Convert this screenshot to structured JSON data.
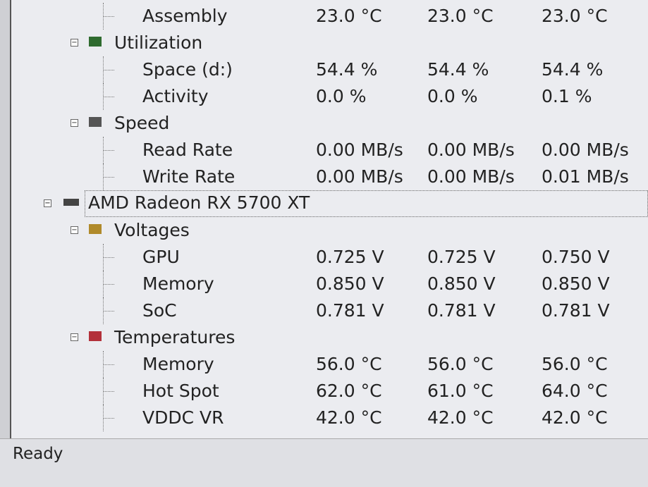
{
  "disk": {
    "sensor_tail": {
      "label": "Assembly",
      "values": [
        "23.0 °C",
        "23.0 °C",
        "23.0 °C"
      ]
    },
    "groups": [
      {
        "label": "Utilization",
        "sensors": [
          {
            "label": "Space (d:)",
            "values": [
              "54.4 %",
              "54.4 %",
              "54.4 %"
            ]
          },
          {
            "label": "Activity",
            "values": [
              "0.0 %",
              "0.0 %",
              "0.1 %"
            ]
          }
        ]
      },
      {
        "label": "Speed",
        "sensors": [
          {
            "label": "Read Rate",
            "values": [
              "0.00 MB/s",
              "0.00 MB/s",
              "0.00 MB/s"
            ]
          },
          {
            "label": "Write Rate",
            "values": [
              "0.00 MB/s",
              "0.00 MB/s",
              "0.01 MB/s"
            ]
          }
        ]
      }
    ]
  },
  "device": {
    "label": "AMD Radeon RX 5700 XT",
    "groups": [
      {
        "label": "Voltages",
        "sensors": [
          {
            "label": "GPU",
            "values": [
              "0.725 V",
              "0.725 V",
              "0.750 V"
            ]
          },
          {
            "label": "Memory",
            "values": [
              "0.850 V",
              "0.850 V",
              "0.850 V"
            ]
          },
          {
            "label": "SoC",
            "values": [
              "0.781 V",
              "0.781 V",
              "0.781 V"
            ]
          }
        ]
      },
      {
        "label": "Temperatures",
        "sensors": [
          {
            "label": "Memory",
            "values": [
              "56.0 °C",
              "56.0 °C",
              "56.0 °C"
            ]
          },
          {
            "label": "Hot Spot",
            "values": [
              "62.0 °C",
              "61.0 °C",
              "64.0 °C"
            ]
          },
          {
            "label": "VDDC VR",
            "values": [
              "42.0 °C",
              "42.0 °C",
              "42.0 °C"
            ]
          }
        ]
      }
    ]
  },
  "status": "Ready"
}
